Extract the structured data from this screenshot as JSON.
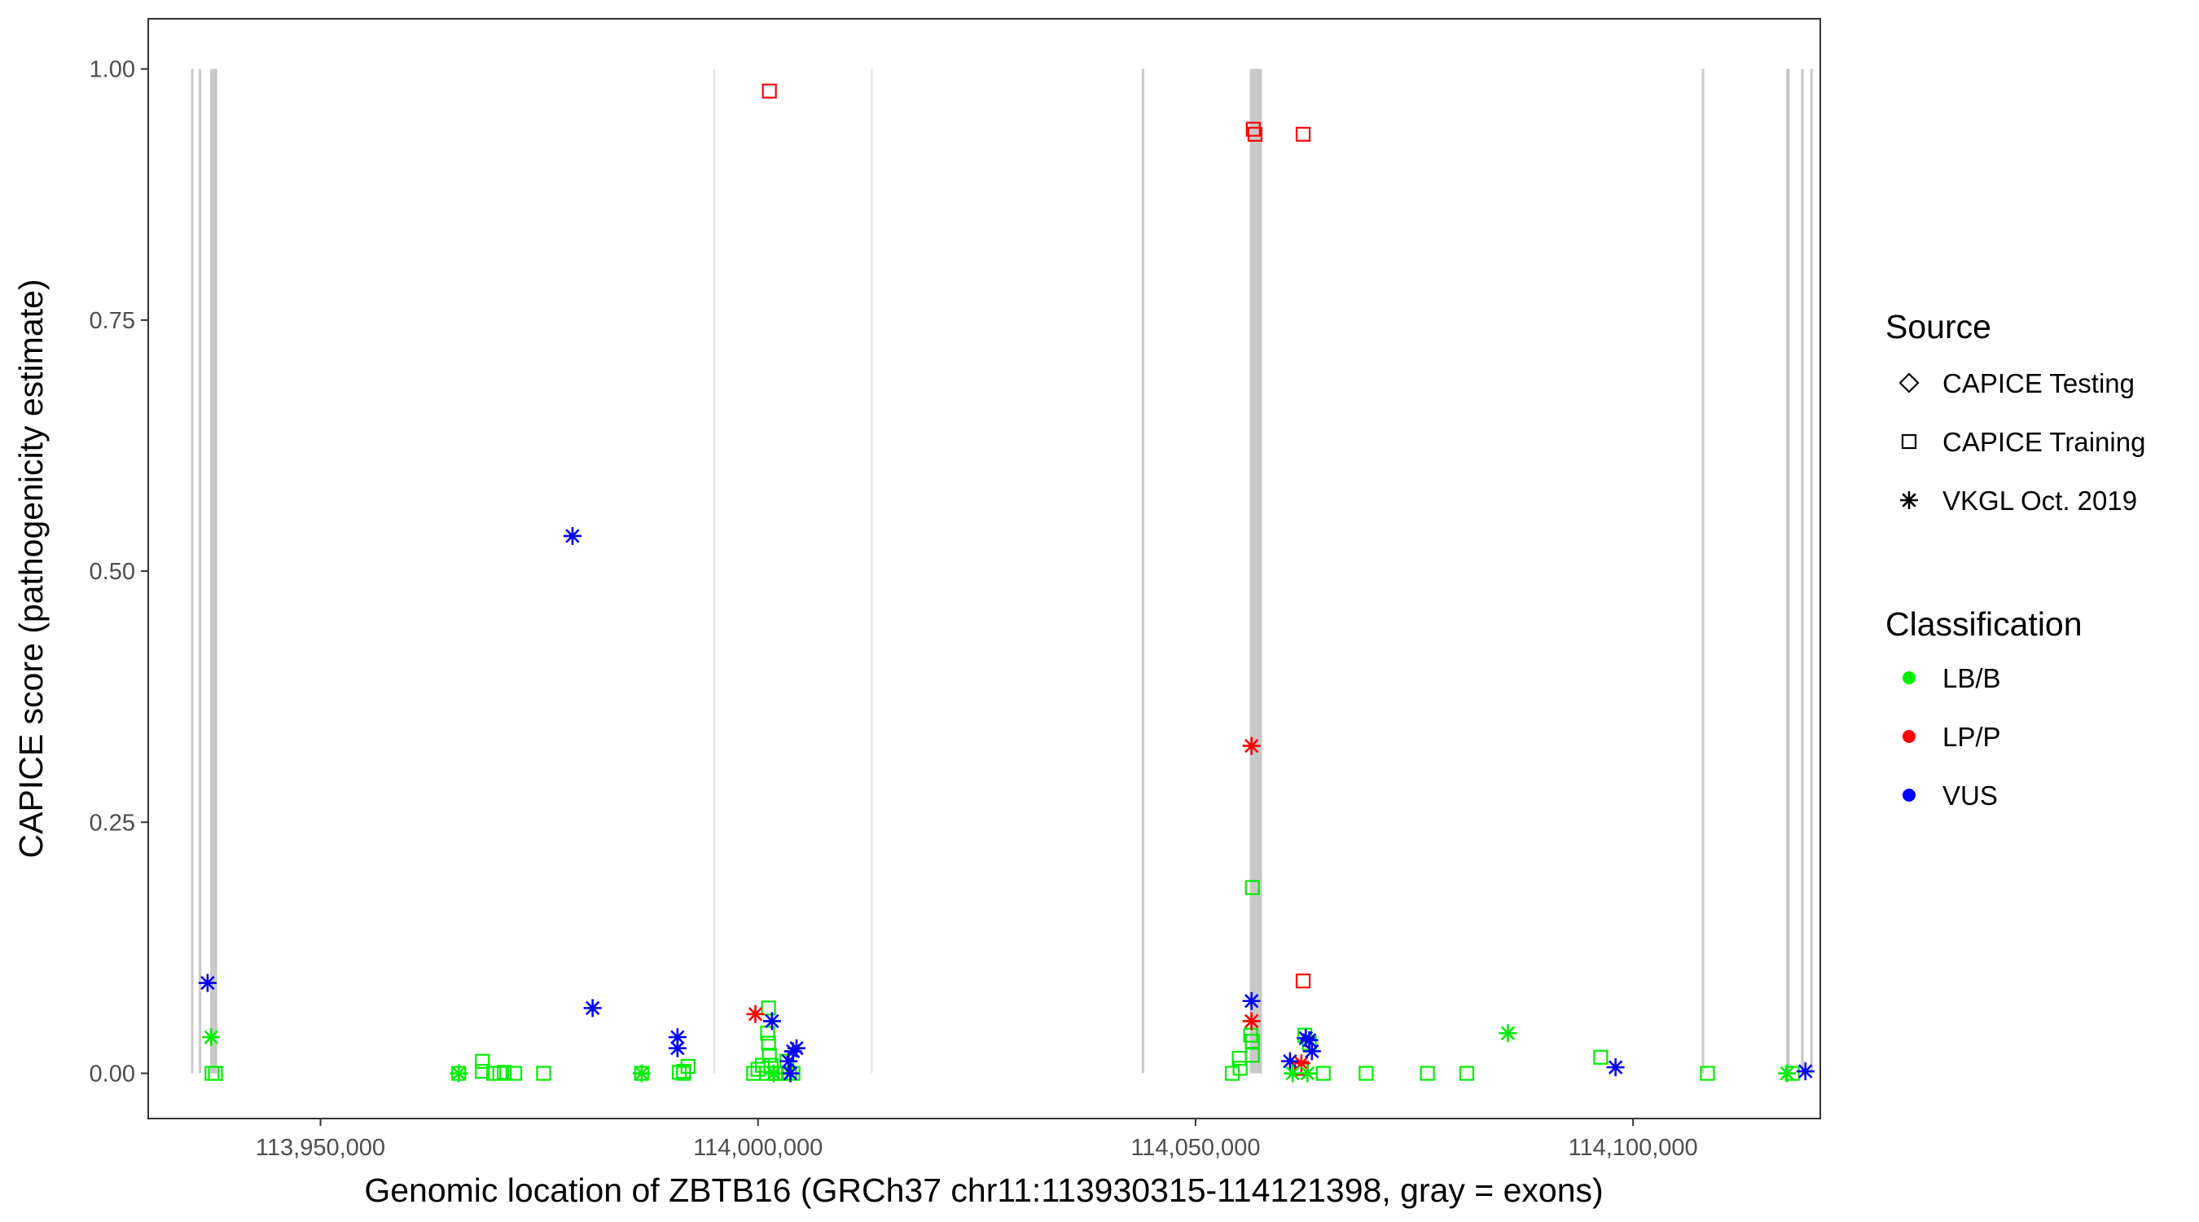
{
  "chart_data": {
    "type": "scatter",
    "xlabel": "Genomic location of ZBTB16 (GRCh37 chr11:113930315-114121398, gray = exons)",
    "ylabel": "CAPICE score (pathogenicity estimate)",
    "xlim": [
      113930315,
      114121398
    ],
    "ylim": [
      -0.045,
      1.05
    ],
    "x_ticks": [
      113950000,
      114000000,
      114050000,
      114100000
    ],
    "x_tick_labels": [
      "113,950,000",
      "114,000,000",
      "114,050,000",
      "114,100,000"
    ],
    "y_ticks": [
      0,
      0.25,
      0.5,
      0.75,
      1.0
    ],
    "y_tick_labels": [
      "0.00",
      "0.25",
      "0.50",
      "0.75",
      "1.00"
    ],
    "grid": false,
    "colors": {
      "LB/B": "#00ee00",
      "LP/P": "#ff0000",
      "VUS": "#0000ff",
      "exon": "#c8c8c8",
      "intron_line": "#e0e0e0"
    },
    "exons": [
      [
        113935200,
        113935350
      ],
      [
        113936100,
        113936250
      ],
      [
        113937400,
        113938200
      ],
      [
        114056200,
        114057600
      ],
      [
        114117500,
        114117900
      ],
      [
        114119200,
        114119500
      ]
    ],
    "exon_lines": [
      114120400,
      114108000,
      114044000
    ],
    "intron_lines": [
      113995000,
      114013000
    ],
    "legend": {
      "position": "right",
      "source_title": "Source",
      "source_items": [
        {
          "label": "CAPICE Testing",
          "shape": "diamond"
        },
        {
          "label": "CAPICE Training",
          "shape": "square"
        },
        {
          "label": "VKGL Oct. 2019",
          "shape": "asterisk"
        }
      ],
      "class_title": "Classification",
      "class_items": [
        {
          "label": "LB/B",
          "color": "#00ee00"
        },
        {
          "label": "LP/P",
          "color": "#ff0000"
        },
        {
          "label": "VUS",
          "color": "#0000ff"
        }
      ]
    },
    "series": [
      {
        "name": "CAPICE Training",
        "shape": "square",
        "points": [
          [
            114001300,
            0.978,
            "LP/P"
          ],
          [
            114056600,
            0.94,
            "LP/P"
          ],
          [
            114056800,
            0.935,
            "LP/P"
          ],
          [
            114062300,
            0.935,
            "LP/P"
          ],
          [
            114062300,
            0.092,
            "LP/P"
          ],
          [
            114062100,
            0.005,
            "LP/P"
          ],
          [
            114056500,
            0.185,
            "LB/B"
          ],
          [
            114056300,
            0.038,
            "LB/B"
          ],
          [
            114056500,
            0.032,
            "LB/B"
          ],
          [
            114056500,
            0.018,
            "LB/B"
          ],
          [
            114055000,
            0.015,
            "LB/B"
          ],
          [
            114055100,
            0.005,
            "LB/B"
          ],
          [
            114054200,
            0.0,
            "LB/B"
          ],
          [
            114062500,
            0.038,
            "LB/B"
          ],
          [
            114063000,
            0.03,
            "LB/B"
          ],
          [
            114064600,
            0.0,
            "LB/B"
          ],
          [
            114069500,
            0.0,
            "LB/B"
          ],
          [
            114076500,
            0.0,
            "LB/B"
          ],
          [
            114096300,
            0.016,
            "LB/B"
          ],
          [
            114081000,
            0.0,
            "LB/B"
          ],
          [
            114108500,
            0.0,
            "LB/B"
          ],
          [
            114118200,
            0.0,
            "LB/B"
          ],
          [
            113937600,
            0.0,
            "LB/B"
          ],
          [
            113938000,
            0.0,
            "LB/B"
          ],
          [
            113965800,
            0.0,
            "LB/B"
          ],
          [
            113968500,
            0.012,
            "LB/B"
          ],
          [
            113968500,
            0.002,
            "LB/B"
          ],
          [
            113969800,
            0.0,
            "LB/B"
          ],
          [
            113970500,
            0.0,
            "LB/B"
          ],
          [
            113971000,
            0.001,
            "LB/B"
          ],
          [
            113972200,
            0.0,
            "LB/B"
          ],
          [
            113975500,
            0.0,
            "LB/B"
          ],
          [
            113986700,
            0.0,
            "LB/B"
          ],
          [
            113991000,
            0.001,
            "LB/B"
          ],
          [
            113991500,
            0.002,
            "LB/B"
          ],
          [
            113991500,
            0.0,
            "LB/B"
          ],
          [
            113992000,
            0.007,
            "LB/B"
          ],
          [
            113999500,
            0.0,
            "LB/B"
          ],
          [
            114000000,
            0.004,
            "LB/B"
          ],
          [
            114000500,
            0.008,
            "LB/B"
          ],
          [
            114001000,
            0.0,
            "LB/B"
          ],
          [
            114001200,
            0.065,
            "LB/B"
          ],
          [
            114001100,
            0.04,
            "LB/B"
          ],
          [
            114001200,
            0.03,
            "LB/B"
          ],
          [
            114001300,
            0.018,
            "LB/B"
          ],
          [
            114001500,
            0.008,
            "LB/B"
          ],
          [
            114002000,
            0.0,
            "LB/B"
          ],
          [
            114002600,
            0.0,
            "LB/B"
          ],
          [
            114003100,
            0.0,
            "LB/B"
          ],
          [
            114003300,
            0.012,
            "LB/B"
          ],
          [
            114003600,
            0.0,
            "LB/B"
          ],
          [
            114004000,
            0.0,
            "LB/B"
          ]
        ]
      },
      {
        "name": "VKGL Oct. 2019",
        "shape": "asterisk",
        "points": [
          [
            113937100,
            0.09,
            "VUS"
          ],
          [
            113937500,
            0.036,
            "LB/B"
          ],
          [
            113978800,
            0.535,
            "VUS"
          ],
          [
            113981100,
            0.065,
            "VUS"
          ],
          [
            113990800,
            0.036,
            "VUS"
          ],
          [
            113990800,
            0.025,
            "VUS"
          ],
          [
            113999700,
            0.059,
            "LP/P"
          ],
          [
            114001600,
            0.052,
            "VUS"
          ],
          [
            114003500,
            0.012,
            "VUS"
          ],
          [
            114004000,
            0.022,
            "VUS"
          ],
          [
            114004400,
            0.025,
            "VUS"
          ],
          [
            114003700,
            0.0,
            "VUS"
          ],
          [
            113965800,
            0.0,
            "LB/B"
          ],
          [
            113986700,
            0.0,
            "LB/B"
          ],
          [
            114001800,
            0.0,
            "LB/B"
          ],
          [
            114056400,
            0.326,
            "LP/P"
          ],
          [
            114056400,
            0.072,
            "VUS"
          ],
          [
            114056400,
            0.052,
            "LP/P"
          ],
          [
            114060800,
            0.012,
            "VUS"
          ],
          [
            114062100,
            0.01,
            "LP/P"
          ],
          [
            114062600,
            0.035,
            "VUS"
          ],
          [
            114063000,
            0.033,
            "VUS"
          ],
          [
            114063300,
            0.022,
            "VUS"
          ],
          [
            114061100,
            0.0,
            "LB/B"
          ],
          [
            114062800,
            0.0,
            "LB/B"
          ],
          [
            114085700,
            0.04,
            "LB/B"
          ],
          [
            114098000,
            0.006,
            "VUS"
          ],
          [
            114117600,
            0.0,
            "LB/B"
          ],
          [
            114119700,
            0.002,
            "VUS"
          ]
        ]
      }
    ]
  }
}
